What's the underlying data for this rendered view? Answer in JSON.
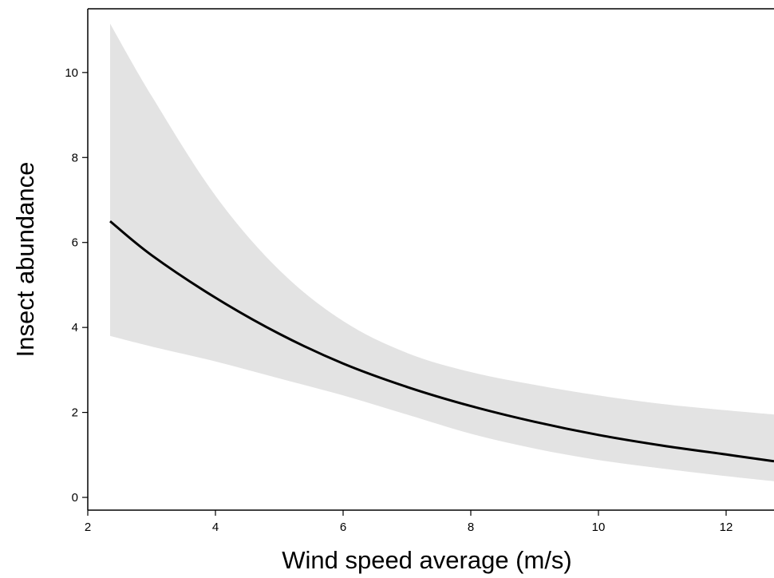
{
  "chart_data": {
    "type": "line",
    "title": "",
    "xlabel": "Wind speed average (m/s)",
    "ylabel": "Insect abundance",
    "xlim": [
      2,
      12.75
    ],
    "ylim": [
      -0.3,
      11.5
    ],
    "x_ticks": [
      2,
      4,
      6,
      8,
      10,
      12
    ],
    "y_ticks": [
      0,
      2,
      4,
      6,
      8,
      10
    ],
    "grid": false,
    "colors": {
      "line": "#000000",
      "band": "#e3e3e3",
      "axis": "#000000"
    },
    "series": [
      {
        "x": [
          2.35,
          3,
          4,
          5,
          6,
          7,
          8,
          9,
          10,
          11,
          12,
          12.75
        ],
        "y": [
          6.5,
          5.7,
          4.7,
          3.85,
          3.15,
          2.6,
          2.15,
          1.78,
          1.47,
          1.22,
          1.01,
          0.85
        ],
        "lower": [
          3.8,
          3.55,
          3.2,
          2.8,
          2.4,
          1.95,
          1.5,
          1.15,
          0.88,
          0.68,
          0.5,
          0.38
        ],
        "upper": [
          11.15,
          9.45,
          7.1,
          5.35,
          4.15,
          3.4,
          2.95,
          2.65,
          2.4,
          2.2,
          2.05,
          1.95
        ]
      }
    ]
  }
}
